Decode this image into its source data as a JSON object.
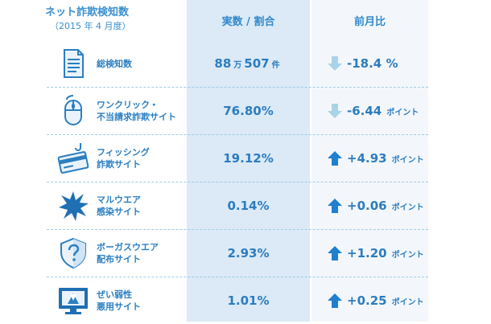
{
  "header": {
    "title": "ネット詐欺検知数",
    "subtitle": "（2015 年 4 月度）",
    "col_value": "実数 / 割合",
    "col_change": "前月比"
  },
  "rows": [
    {
      "line1": "総検知数",
      "line2": "",
      "value_main": "88",
      "value_u1": "万",
      "value_rest": "507",
      "value_u2": "件",
      "change": "-18.4 %",
      "change_unit": "",
      "direction": "down",
      "icon": "document-icon"
    },
    {
      "line1": "ワンクリック・",
      "line2": "不当請求詐欺サイト",
      "value_main": "76.80%",
      "value_u1": "",
      "value_rest": "",
      "value_u2": "",
      "change": "-6.44",
      "change_unit": "ポイント",
      "direction": "down",
      "icon": "mouse-icon"
    },
    {
      "line1": "フィッシング",
      "line2": "詐欺サイト",
      "value_main": "19.12%",
      "value_u1": "",
      "value_rest": "",
      "value_u2": "",
      "change": "+4.93",
      "change_unit": "ポイント",
      "direction": "up",
      "icon": "credit-card-hook-icon"
    },
    {
      "line1": "マルウエア",
      "line2": "感染サイト",
      "value_main": "0.14%",
      "value_u1": "",
      "value_rest": "",
      "value_u2": "",
      "change": "+0.06",
      "change_unit": "ポイント",
      "direction": "up",
      "icon": "malware-burst-icon"
    },
    {
      "line1": "ボーガスウエア",
      "line2": "配布サイト",
      "value_main": "2.93%",
      "value_u1": "",
      "value_rest": "",
      "value_u2": "",
      "change": "+1.20",
      "change_unit": "ポイント",
      "direction": "up",
      "icon": "shield-question-icon"
    },
    {
      "line1": "ぜい弱性",
      "line2": "悪用サイト",
      "value_main": "1.01%",
      "value_u1": "",
      "value_rest": "",
      "value_u2": "",
      "change": "+0.25",
      "change_unit": "ポイント",
      "direction": "up",
      "icon": "monitor-icon"
    }
  ],
  "colors": {
    "accent": "#2c7cc0",
    "arrow_down": "#a9d3ea",
    "arrow_up": "#1f7fd0"
  }
}
